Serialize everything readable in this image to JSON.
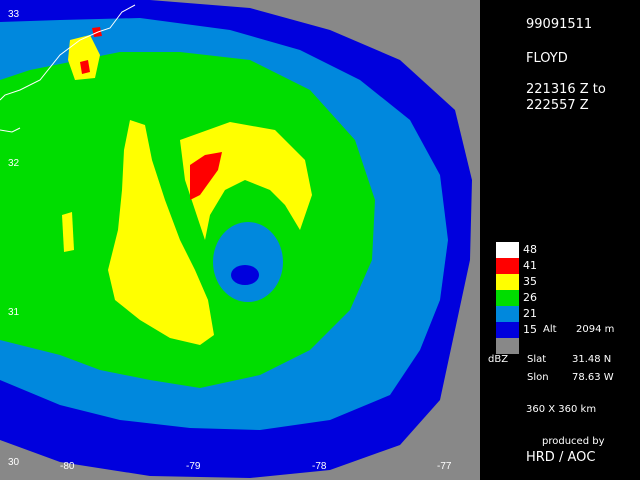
{
  "info": {
    "date": "99091511",
    "storm": "FLOYD",
    "time_start": "221316 Z  to",
    "time_end": "222557 Z",
    "units": "dBZ",
    "alt_label": "Alt",
    "alt_value": "2094 m",
    "slat_label": "Slat",
    "slat_value": "31.48 N",
    "slon_label": "Slon",
    "slon_value": "78.63 W",
    "domain_size": "360 X 360 km",
    "produced_by": "produced by",
    "producer": "HRD / AOC"
  },
  "legend": [
    {
      "value": "48",
      "color": "#ffffff"
    },
    {
      "value": "41",
      "color": "#ff0000"
    },
    {
      "value": "35",
      "color": "#ffff00"
    },
    {
      "value": "26",
      "color": "#00dd00"
    },
    {
      "value": "21",
      "color": "#0088dd"
    },
    {
      "value": "15",
      "color": "#0000dd"
    },
    {
      "value": "",
      "color": "#888888"
    }
  ],
  "axes": {
    "lon_ticks": [
      "-80",
      "-79",
      "-78",
      "-77"
    ],
    "lat_ticks": [
      "33",
      "32",
      "31",
      "30"
    ]
  },
  "colors": {
    "no_data": "#888888",
    "panel_bg": "#000000",
    "coastline": "#ffffff"
  }
}
